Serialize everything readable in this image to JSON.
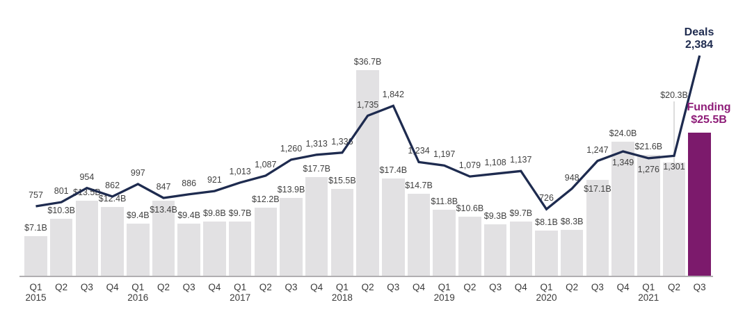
{
  "chart_data": {
    "type": "combo_bar_line",
    "title": "",
    "grid": false,
    "legend_position": "end-of-series labels (top right)",
    "x": {
      "quarters": [
        "Q1",
        "Q2",
        "Q3",
        "Q4",
        "Q1",
        "Q2",
        "Q3",
        "Q4",
        "Q1",
        "Q2",
        "Q3",
        "Q4",
        "Q1",
        "Q2",
        "Q3",
        "Q4",
        "Q1",
        "Q2",
        "Q3",
        "Q4",
        "Q1",
        "Q2",
        "Q3",
        "Q4",
        "Q1",
        "Q2",
        "Q3"
      ],
      "years_by_index": {
        "0": "2015",
        "4": "2016",
        "8": "2017",
        "12": "2018",
        "16": "2019",
        "20": "2020",
        "24": "2021"
      }
    },
    "series": [
      {
        "name": "Funding",
        "type": "bar",
        "unit": "USD billions",
        "values": [
          7.1,
          10.3,
          13.5,
          12.4,
          9.4,
          13.4,
          9.4,
          9.8,
          9.7,
          12.2,
          13.9,
          17.7,
          15.5,
          36.7,
          17.4,
          14.7,
          11.8,
          10.6,
          9.3,
          9.7,
          8.1,
          8.3,
          17.1,
          24.0,
          21.6,
          20.3,
          25.5
        ],
        "labels": [
          "$7.1B",
          "$10.3B",
          "$13.5B",
          "$12.4B",
          "$9.4B",
          "$13.4B",
          "$9.4B",
          "$9.8B",
          "$9.7B",
          "$12.2B",
          "$13.9B",
          "$17.7B",
          "$15.5B",
          "$36.7B",
          "$17.4B",
          "$14.7B",
          "$11.8B",
          "$10.6B",
          "$9.3B",
          "$9.7B",
          "$8.1B",
          "$8.3B",
          "$17.1B",
          "$24.0B",
          "$21.6B",
          "$20.3B",
          "$25.5B"
        ]
      },
      {
        "name": "Deals",
        "type": "line",
        "unit": "deal count",
        "values": [
          757,
          801,
          954,
          862,
          997,
          847,
          886,
          921,
          1013,
          1087,
          1260,
          1313,
          1336,
          1735,
          1842,
          1234,
          1197,
          1079,
          1108,
          1137,
          726,
          948,
          1247,
          1349,
          1276,
          1301,
          2384
        ],
        "labels": [
          "757",
          "801",
          "954",
          "862",
          "997",
          "847",
          "886",
          "921",
          "1,013",
          "1,087",
          "1,260",
          "1,313",
          "1,336",
          "1,735",
          "1,842",
          "1,234",
          "1,197",
          "1,079",
          "1,108",
          "1,137",
          "726",
          "948",
          "1,247",
          "1,349",
          "1,276",
          "1,301",
          "2,384"
        ]
      }
    ],
    "end_labels": {
      "deals": {
        "name": "Deals",
        "value": "2,384"
      },
      "funding": {
        "name": "Funding",
        "value": "$25.5B"
      }
    },
    "label_layout": {
      "funding_pos": [
        "above",
        "above",
        "above",
        "above",
        "above",
        "inside",
        "above",
        "above",
        "above",
        "above",
        "above",
        "above",
        "above",
        "above",
        "above",
        "above",
        "above",
        "above",
        "above",
        "above",
        "above",
        "above",
        "inside",
        "above",
        "above",
        "raised",
        "end"
      ],
      "deals_pos": [
        "above",
        "above",
        "above",
        "above",
        "above",
        "above",
        "above",
        "above",
        "above",
        "above",
        "above",
        "above",
        "above",
        "above",
        "above",
        "above",
        "above",
        "above",
        "above",
        "above",
        "above",
        "above",
        "above",
        "below",
        "below",
        "below",
        "end"
      ]
    },
    "ylim_bars": [
      0,
      40
    ],
    "ylim_line": [
      0,
      2500
    ],
    "colors": {
      "bar": "#e2e1e3",
      "bar_highlight": "#7c1a6c",
      "line": "#1e2b4f",
      "data_label_text": "#404040",
      "tick_text": "#3a3a3a",
      "funding_end_text": "#8e1c78",
      "deals_end_text": "#1e2b4f",
      "axis": "#b0aeb1",
      "leader": "#dcdcdc"
    }
  }
}
